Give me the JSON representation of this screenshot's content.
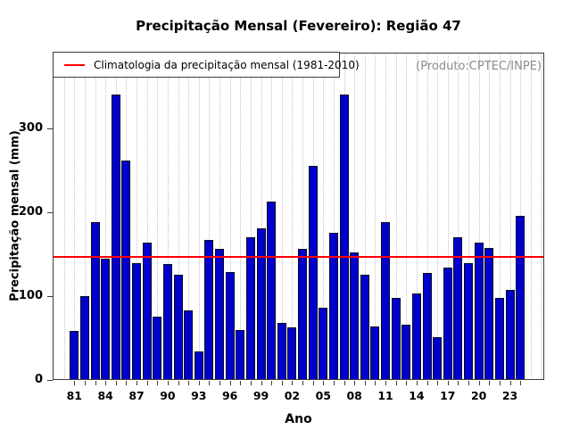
{
  "header": {
    "title": "Precipitação Mensal (Fevereiro): Região 47"
  },
  "legend": {
    "label": "Climatologia da precipitação mensal (1981-2010)",
    "line_color": "#ff0000"
  },
  "watermark": {
    "text": "(Produto:CPTEC/INPE)",
    "color": "#8c8c8c"
  },
  "axes": {
    "y_label": "Precipitação mensal (mm)",
    "x_label": "Ano",
    "y_ticks": [
      0,
      100,
      200,
      300
    ],
    "x_tick_labels": [
      "81",
      "84",
      "87",
      "90",
      "93",
      "96",
      "99",
      "02",
      "05",
      "08",
      "11",
      "14",
      "17",
      "20",
      "23"
    ]
  },
  "chart_data": {
    "type": "bar",
    "title": "Precipitação Mensal (Fevereiro): Região 47",
    "xlabel": "Ano",
    "ylabel": "Precipitação mensal (mm)",
    "ylim": [
      0,
      390
    ],
    "grid": "vertical-dotted",
    "legend_position": "top-left",
    "bar_color": "#0000cd",
    "bar_border_color": "#000a1e",
    "climatology_line_color": "#ff0000",
    "climatology_1981_2010": 147,
    "x": [
      1981,
      1982,
      1983,
      1984,
      1985,
      1986,
      1987,
      1988,
      1989,
      1990,
      1991,
      1992,
      1993,
      1994,
      1995,
      1996,
      1997,
      1998,
      1999,
      2000,
      2001,
      2002,
      2003,
      2004,
      2005,
      2006,
      2007,
      2008,
      2009,
      2010,
      2011,
      2012,
      2013,
      2014,
      2015,
      2016,
      2017,
      2018,
      2019,
      2020,
      2021,
      2022,
      2023,
      2024
    ],
    "values": [
      58,
      100,
      188,
      145,
      340,
      262,
      139,
      164,
      75,
      138,
      125,
      83,
      34,
      167,
      156,
      129,
      60,
      170,
      181,
      213,
      68,
      63,
      156,
      255,
      86,
      176,
      340,
      152,
      126,
      64,
      188,
      98,
      66,
      103,
      128,
      51,
      134,
      170,
      139,
      164,
      157,
      98,
      107,
      196
    ]
  }
}
